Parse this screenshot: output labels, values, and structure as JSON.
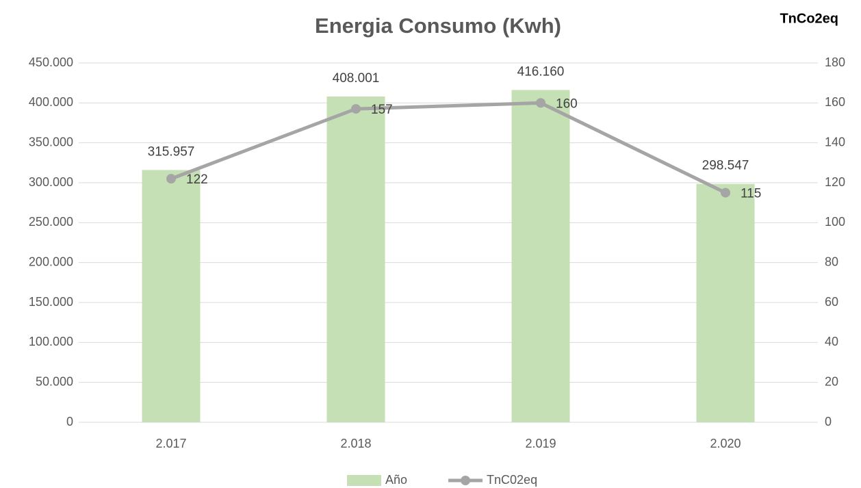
{
  "chart_data": {
    "type": "bar",
    "title": "Energia Consumo (Kwh)",
    "y2_label": "TnCo2eq",
    "categories": [
      "2.017",
      "2.018",
      "2.019",
      "2.020"
    ],
    "series": [
      {
        "name": "Año",
        "type": "bar",
        "color": "#c5e0b4",
        "values": [
          315957,
          408001,
          416160,
          298547
        ],
        "value_labels": [
          "315.957",
          "408.001",
          "416.160",
          "298.547"
        ]
      },
      {
        "name": "TnC02eq",
        "type": "line",
        "axis": "y2",
        "color": "#a5a5a5",
        "values": [
          122,
          157,
          160,
          115
        ]
      }
    ],
    "ylim": [
      0,
      450000
    ],
    "yticks": [
      0,
      {
        "value": 50000,
        "label": "50.000"
      },
      {
        "value": 100000,
        "label": "100.000"
      },
      {
        "value": 150000,
        "label": "150.000"
      },
      {
        "value": 200000,
        "label": "200.000"
      },
      {
        "value": 250000,
        "label": "250.000"
      },
      {
        "value": 300000,
        "label": "300.000"
      },
      {
        "value": 350000,
        "label": "350.000"
      },
      {
        "value": 400000,
        "label": "400.000"
      },
      {
        "value": 450000,
        "label": "450.000"
      }
    ],
    "y2lim": [
      0,
      180
    ],
    "y2ticks": [
      0,
      20,
      40,
      60,
      80,
      100,
      120,
      140,
      160,
      180
    ],
    "grid": true,
    "legend": "bottom"
  }
}
